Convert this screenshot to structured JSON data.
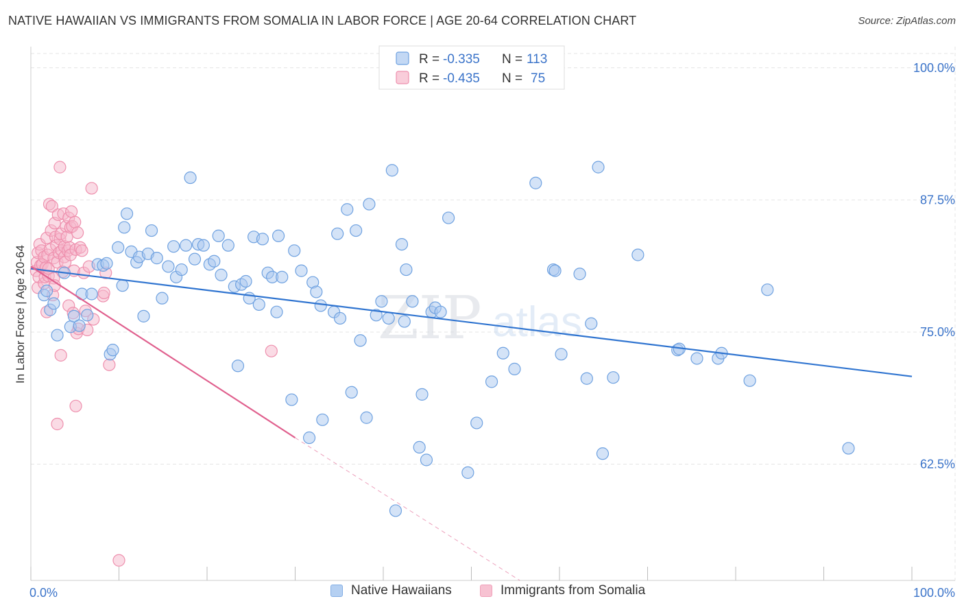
{
  "title": "NATIVE HAWAIIAN VS IMMIGRANTS FROM SOMALIA IN LABOR FORCE | AGE 20-64 CORRELATION CHART",
  "source": "Source: ZipAtlas.com",
  "watermark": "ZIPatlas",
  "colors": {
    "blue_fill": "#a9c8f0",
    "blue_stroke": "#6ea1e0",
    "blue_line": "#2f74d0",
    "pink_fill": "#f6b8cb",
    "pink_stroke": "#ee8fad",
    "pink_line": "#e0608e",
    "axis_text": "#3a73c9"
  },
  "legend_top": {
    "rows": [
      {
        "r_label": "R =",
        "r_value": "-0.335",
        "n_label": "N =",
        "n_value": "113"
      },
      {
        "r_label": "R =",
        "r_value": "-0.435",
        "n_label": "N =",
        "n_value": "75"
      }
    ]
  },
  "legend_bottom": {
    "items": [
      "Native Hawaiians",
      "Immigrants from Somalia"
    ]
  },
  "chart_data": {
    "type": "scatter",
    "title": "NATIVE HAWAIIAN VS IMMIGRANTS FROM SOMALIA IN LABOR FORCE | AGE 20-64 CORRELATION CHART",
    "xlabel": "",
    "ylabel": "In Labor Force | Age 20-64",
    "xlim": [
      0,
      100
    ],
    "ylim": [
      51.5,
      102
    ],
    "x_tick_labels": [
      "0.0%",
      "100.0%"
    ],
    "y_ticks": [
      {
        "value": 100.0,
        "label": "100.0%"
      },
      {
        "value": 87.5,
        "label": "87.5%"
      },
      {
        "value": 75.0,
        "label": "75.0%"
      },
      {
        "value": 62.5,
        "label": "62.5%"
      }
    ],
    "grid": true,
    "legend_position": "top-center",
    "series": [
      {
        "name": "Native Hawaiians",
        "color": "blue",
        "trend": {
          "x": [
            0,
            100
          ],
          "y": [
            81.0,
            70.8
          ]
        },
        "points": [
          [
            1.5,
            78.5
          ],
          [
            1.8,
            78.9
          ],
          [
            2.2,
            77.1
          ],
          [
            2.6,
            77.7
          ],
          [
            3.0,
            74.7
          ],
          [
            3.8,
            80.6
          ],
          [
            4.5,
            75.5
          ],
          [
            4.9,
            76.5
          ],
          [
            5.5,
            75.6
          ],
          [
            5.8,
            78.6
          ],
          [
            6.4,
            76.6
          ],
          [
            6.9,
            78.6
          ],
          [
            7.6,
            81.4
          ],
          [
            8.2,
            81.3
          ],
          [
            8.6,
            81.5
          ],
          [
            9.0,
            72.9
          ],
          [
            9.3,
            73.3
          ],
          [
            9.9,
            83.0
          ],
          [
            10.4,
            79.4
          ],
          [
            10.6,
            84.9
          ],
          [
            10.9,
            86.2
          ],
          [
            11.4,
            82.6
          ],
          [
            12.0,
            81.6
          ],
          [
            12.3,
            82.1
          ],
          [
            12.8,
            76.5
          ],
          [
            13.3,
            82.4
          ],
          [
            13.7,
            84.6
          ],
          [
            14.3,
            82.0
          ],
          [
            14.9,
            78.2
          ],
          [
            15.6,
            81.2
          ],
          [
            16.2,
            83.1
          ],
          [
            16.5,
            80.2
          ],
          [
            17.1,
            80.9
          ],
          [
            17.6,
            83.2
          ],
          [
            18.1,
            89.6
          ],
          [
            18.6,
            81.9
          ],
          [
            19.0,
            83.3
          ],
          [
            19.6,
            83.2
          ],
          [
            20.3,
            81.4
          ],
          [
            20.8,
            81.7
          ],
          [
            21.3,
            84.1
          ],
          [
            21.6,
            80.4
          ],
          [
            22.4,
            83.2
          ],
          [
            23.1,
            79.3
          ],
          [
            23.5,
            71.8
          ],
          [
            23.9,
            79.5
          ],
          [
            24.4,
            79.8
          ],
          [
            24.8,
            78.2
          ],
          [
            25.3,
            84.0
          ],
          [
            25.9,
            77.6
          ],
          [
            26.3,
            83.8
          ],
          [
            26.9,
            80.6
          ],
          [
            27.4,
            80.2
          ],
          [
            27.9,
            76.9
          ],
          [
            28.1,
            84.1
          ],
          [
            28.5,
            80.2
          ],
          [
            29.6,
            68.6
          ],
          [
            29.9,
            82.7
          ],
          [
            30.7,
            80.8
          ],
          [
            31.6,
            65.0
          ],
          [
            32.0,
            79.7
          ],
          [
            32.4,
            78.8
          ],
          [
            32.9,
            77.5
          ],
          [
            33.1,
            66.7
          ],
          [
            34.4,
            76.9
          ],
          [
            34.8,
            84.3
          ],
          [
            35.1,
            76.3
          ],
          [
            35.9,
            86.6
          ],
          [
            36.4,
            69.3
          ],
          [
            36.9,
            84.6
          ],
          [
            37.4,
            74.2
          ],
          [
            38.1,
            66.9
          ],
          [
            38.4,
            87.1
          ],
          [
            39.2,
            76.6
          ],
          [
            39.8,
            77.9
          ],
          [
            40.6,
            76.3
          ],
          [
            41.0,
            90.3
          ],
          [
            41.4,
            58.1
          ],
          [
            42.1,
            83.3
          ],
          [
            42.4,
            76.0
          ],
          [
            42.6,
            80.9
          ],
          [
            43.3,
            77.9
          ],
          [
            44.1,
            64.1
          ],
          [
            44.4,
            69.1
          ],
          [
            44.9,
            62.9
          ],
          [
            45.5,
            76.9
          ],
          [
            45.9,
            77.3
          ],
          [
            46.5,
            76.9
          ],
          [
            47.4,
            85.8
          ],
          [
            49.6,
            61.7
          ],
          [
            50.6,
            66.4
          ],
          [
            52.3,
            70.3
          ],
          [
            53.6,
            73.0
          ],
          [
            54.9,
            71.5
          ],
          [
            57.3,
            89.1
          ],
          [
            59.3,
            80.9
          ],
          [
            59.5,
            80.8
          ],
          [
            60.2,
            72.9
          ],
          [
            62.3,
            80.5
          ],
          [
            63.1,
            70.6
          ],
          [
            63.6,
            75.8
          ],
          [
            64.4,
            90.6
          ],
          [
            64.9,
            63.5
          ],
          [
            66.1,
            70.7
          ],
          [
            68.9,
            82.3
          ],
          [
            73.4,
            73.3
          ],
          [
            73.6,
            73.4
          ],
          [
            75.6,
            72.5
          ],
          [
            78.0,
            72.5
          ],
          [
            78.4,
            73.0
          ],
          [
            81.6,
            70.4
          ],
          [
            83.6,
            79.0
          ],
          [
            92.8,
            64.0
          ]
        ]
      },
      {
        "name": "Immigrants from Somalia",
        "color": "pink",
        "trend": {
          "x": [
            0,
            30
          ],
          "y": [
            81.2,
            65.0
          ]
        },
        "trend_dashed": {
          "x": [
            30,
            55.5
          ],
          "y": [
            65.0,
            51.5
          ]
        },
        "points": [
          [
            0.6,
            80.8
          ],
          [
            0.7,
            81.6
          ],
          [
            0.8,
            82.5
          ],
          [
            0.8,
            79.2
          ],
          [
            0.9,
            80.2
          ],
          [
            1.0,
            83.3
          ],
          [
            1.1,
            81.3
          ],
          [
            1.2,
            82.7
          ],
          [
            1.3,
            81.4
          ],
          [
            1.5,
            82.1
          ],
          [
            1.5,
            79.6
          ],
          [
            1.6,
            80.2
          ],
          [
            1.7,
            81.1
          ],
          [
            1.8,
            76.9
          ],
          [
            1.8,
            83.9
          ],
          [
            1.9,
            82.3
          ],
          [
            2.0,
            80.3
          ],
          [
            2.0,
            81.0
          ],
          [
            2.1,
            87.1
          ],
          [
            2.2,
            82.8
          ],
          [
            2.3,
            84.6
          ],
          [
            2.4,
            86.9
          ],
          [
            2.5,
            78.5
          ],
          [
            2.6,
            80.1
          ],
          [
            2.6,
            82.0
          ],
          [
            2.7,
            85.3
          ],
          [
            2.7,
            79.4
          ],
          [
            2.8,
            84.0
          ],
          [
            2.9,
            83.2
          ],
          [
            3.0,
            81.6
          ],
          [
            3.1,
            86.1
          ],
          [
            3.2,
            82.5
          ],
          [
            3.3,
            83.8
          ],
          [
            3.3,
            90.6
          ],
          [
            3.4,
            84.3
          ],
          [
            3.4,
            72.8
          ],
          [
            3.5,
            82.7
          ],
          [
            3.6,
            80.7
          ],
          [
            3.7,
            86.2
          ],
          [
            3.8,
            82.1
          ],
          [
            3.8,
            83.1
          ],
          [
            3.9,
            81.6
          ],
          [
            4.0,
            85.0
          ],
          [
            4.1,
            84.0
          ],
          [
            4.2,
            82.7
          ],
          [
            4.3,
            85.8
          ],
          [
            4.3,
            77.5
          ],
          [
            4.4,
            83.0
          ],
          [
            4.5,
            82.3
          ],
          [
            4.5,
            84.9
          ],
          [
            4.6,
            86.4
          ],
          [
            4.7,
            85.0
          ],
          [
            4.8,
            76.8
          ],
          [
            4.9,
            80.8
          ],
          [
            5.0,
            85.4
          ],
          [
            5.1,
            82.8
          ],
          [
            5.1,
            68.0
          ],
          [
            5.2,
            74.9
          ],
          [
            5.3,
            84.4
          ],
          [
            5.4,
            75.3
          ],
          [
            5.6,
            83.0
          ],
          [
            5.8,
            82.7
          ],
          [
            6.0,
            80.6
          ],
          [
            6.2,
            77.0
          ],
          [
            6.4,
            75.2
          ],
          [
            6.6,
            81.2
          ],
          [
            6.9,
            88.6
          ],
          [
            7.1,
            76.2
          ],
          [
            8.2,
            78.4
          ],
          [
            8.3,
            78.7
          ],
          [
            8.5,
            80.6
          ],
          [
            8.9,
            71.9
          ],
          [
            10.0,
            53.4
          ],
          [
            27.3,
            73.2
          ],
          [
            3.0,
            66.3
          ]
        ]
      }
    ]
  }
}
